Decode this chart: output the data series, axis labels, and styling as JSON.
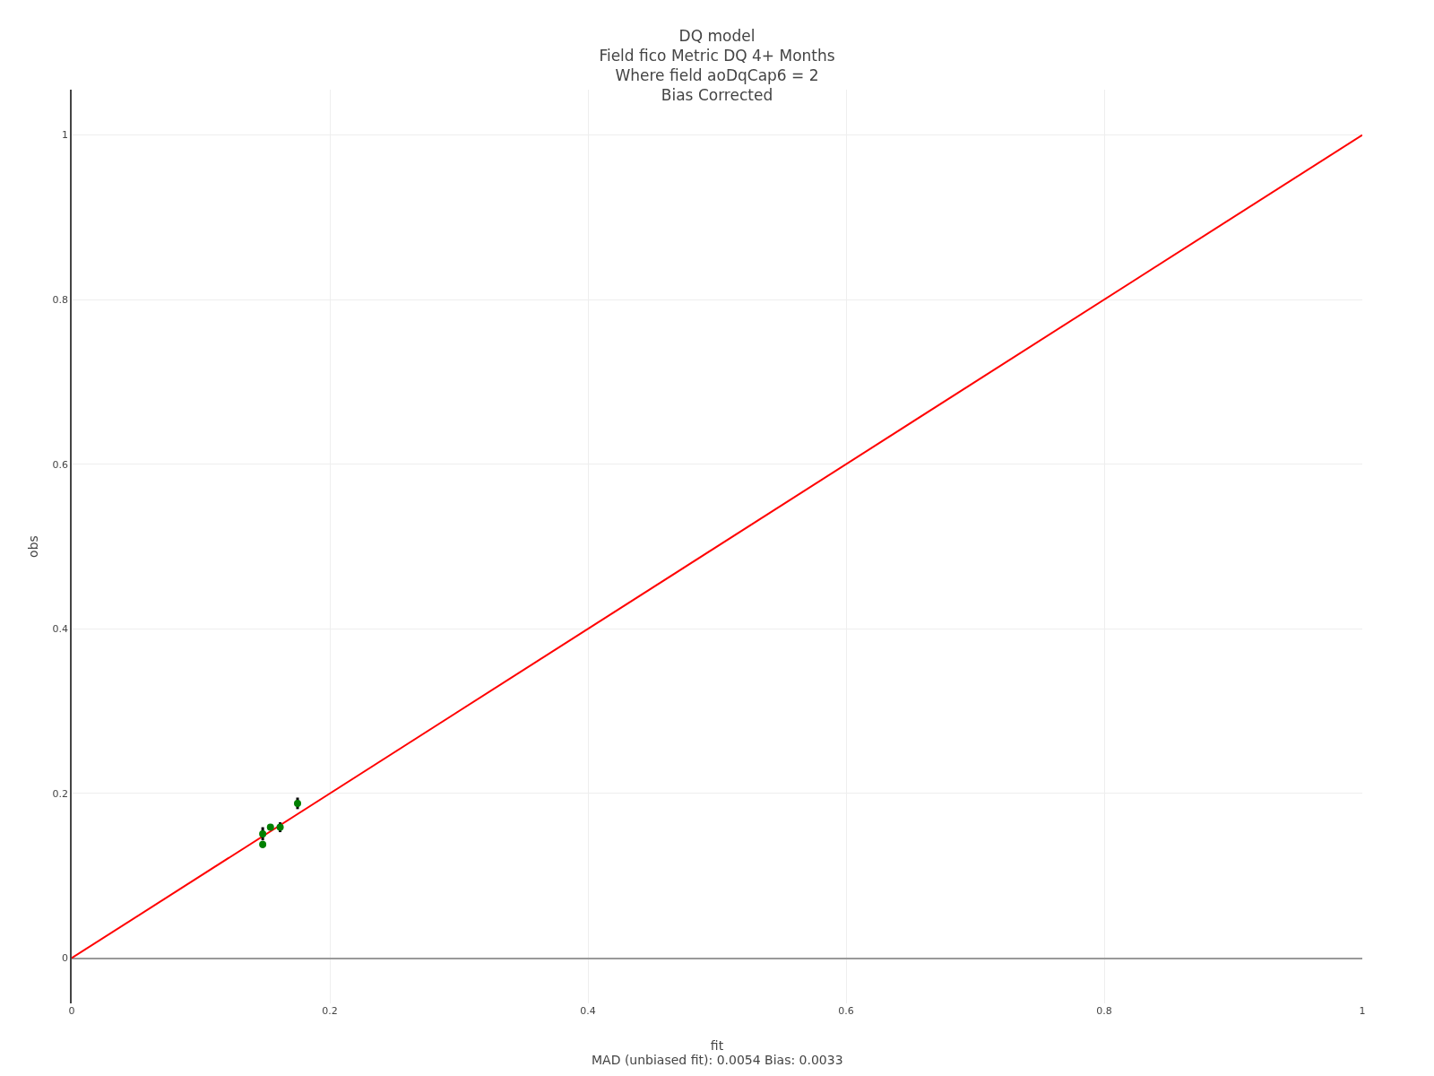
{
  "chart_data": {
    "type": "scatter",
    "title": "DQ model\nField fico Metric DQ 4+ Months\nWhere field aoDqCap6 = 2\nBias Corrected",
    "xlabel": "fit",
    "ylabel": "obs",
    "annotations": [
      "MAD (unbiased fit): 0.0054 Bias: 0.0033"
    ],
    "series": [
      {
        "type": "line",
        "color": "#ff0000",
        "x": [
          0,
          1
        ],
        "values": [
          0,
          1
        ],
        "marker": "none"
      },
      {
        "color": "#008000",
        "x": [
          0.175,
          0.1615,
          0.154,
          0.148,
          0.148
        ],
        "values": [
          0.188,
          0.159,
          0.159,
          0.151,
          0.138
        ],
        "errors": [
          0.007,
          0.006,
          null,
          0.008,
          0.004
        ],
        "marker": "circle"
      }
    ],
    "xlim": [
      0,
      1
    ],
    "ylim": [
      -0.055,
      1.055
    ],
    "xticks": [
      0,
      0.2,
      0.4,
      0.6,
      0.8,
      1
    ],
    "yticks": [
      0,
      0.2,
      0.4,
      0.6,
      0.8,
      1
    ],
    "grid": true,
    "legend": false
  }
}
